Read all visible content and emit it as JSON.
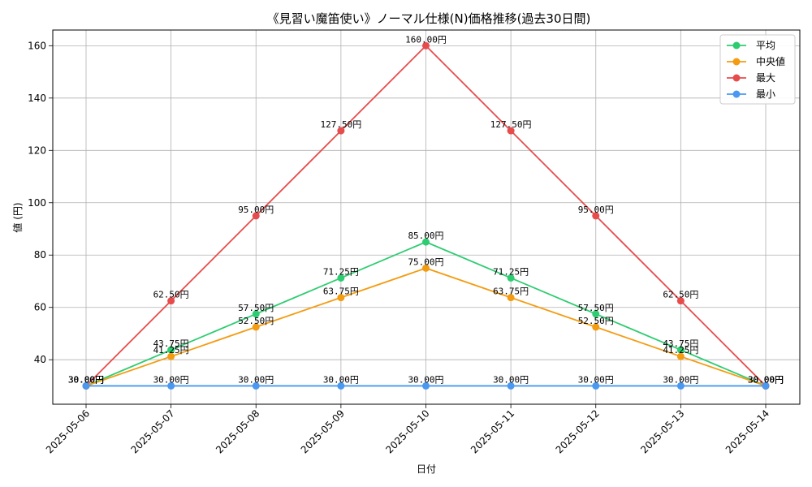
{
  "chart_data": {
    "type": "line",
    "title": "《見習い魔笛使い》ノーマル仕様(N)価格推移(過去30日間)",
    "xlabel": "日付",
    "ylabel": "値 (円)",
    "categories": [
      "2025-05-06",
      "2025-05-07",
      "2025-05-08",
      "2025-05-09",
      "2025-05-10",
      "2025-05-11",
      "2025-05-12",
      "2025-05-13",
      "2025-05-14"
    ],
    "ylim": [
      23,
      166
    ],
    "yticks": [
      40,
      60,
      80,
      100,
      120,
      140,
      160
    ],
    "grid": true,
    "legend_position": "top-right",
    "label_suffix": "円",
    "series": [
      {
        "name": "平均",
        "color": "#2ecc71",
        "values": [
          30.0,
          43.75,
          57.5,
          71.25,
          85.0,
          71.25,
          57.5,
          43.75,
          30.0
        ]
      },
      {
        "name": "中央値",
        "color": "#f39c12",
        "values": [
          30.0,
          41.25,
          52.5,
          63.75,
          75.0,
          63.75,
          52.5,
          41.25,
          30.0
        ]
      },
      {
        "name": "最大",
        "color": "#e74c4c",
        "values": [
          30.0,
          62.5,
          95.0,
          127.5,
          160.0,
          127.5,
          95.0,
          62.5,
          30.0
        ]
      },
      {
        "name": "最小",
        "color": "#4a98f0",
        "values": [
          30.0,
          30.0,
          30.0,
          30.0,
          30.0,
          30.0,
          30.0,
          30.0,
          30.0
        ]
      }
    ]
  }
}
